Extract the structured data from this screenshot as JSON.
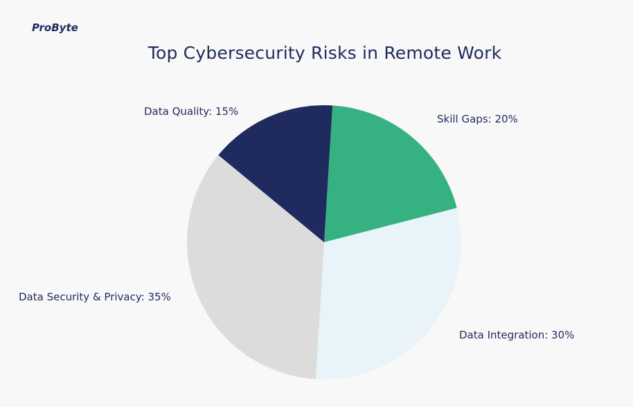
{
  "brand": {
    "logo_text": "ProByte"
  },
  "chart_data": {
    "type": "pie",
    "title": "Top Cybersecurity Risks in Remote Work",
    "slices": [
      {
        "label": "Skill Gaps: 20%",
        "value": 20,
        "color": "#35b182"
      },
      {
        "label": "Data Integration: 30%",
        "value": 30,
        "color": "#e8f4fa"
      },
      {
        "label": "Data Security & Privacy: 35%",
        "value": 35,
        "color": "#dcdcdc"
      },
      {
        "label": "Data Quality: 15%",
        "value": 15,
        "color": "#1f2a5e"
      }
    ]
  }
}
